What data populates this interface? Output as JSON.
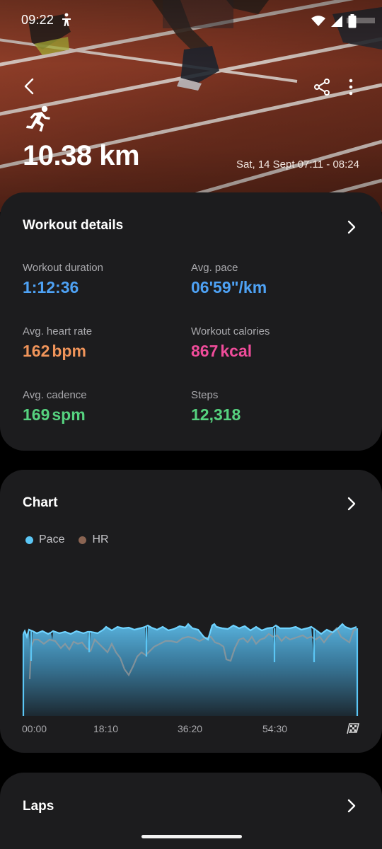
{
  "status_bar": {
    "time": "09:22",
    "left_icon": "accessibility-icon",
    "right_icons": [
      "wifi-icon",
      "signal-icon",
      "battery-icon"
    ]
  },
  "header": {
    "back_icon": "back-arrow-icon",
    "share_icon": "share-icon",
    "more_icon": "more-vertical-icon",
    "activity_icon": "running-icon",
    "distance": "10.38 km",
    "date_range": "Sat, 14 Sept 07:11 - 08:24",
    "background_image": "running track photo"
  },
  "workout_details": {
    "title": "Workout details",
    "stats": [
      {
        "label": "Workout duration",
        "value": "1:12:36",
        "unit": "",
        "color": "#4ea2f5"
      },
      {
        "label": "Avg. pace",
        "value": "06'59\"/km",
        "unit": "",
        "color": "#4ea2f5"
      },
      {
        "label": "Avg. heart rate",
        "value": "162",
        "unit": "bpm",
        "color": "#f0945a"
      },
      {
        "label": "Workout calories",
        "value": "867",
        "unit": "kcal",
        "color": "#ef4c9a"
      },
      {
        "label": "Avg. cadence",
        "value": "169",
        "unit": "spm",
        "color": "#56d27f"
      },
      {
        "label": "Steps",
        "value": "12,318",
        "unit": "",
        "color": "#56d27f"
      }
    ]
  },
  "chart": {
    "title": "Chart",
    "legend": [
      {
        "name": "Pace",
        "color": "#5bc6f5"
      },
      {
        "name": "HR",
        "color": "#8a6452"
      }
    ],
    "x_ticks": [
      "00:00",
      "18:10",
      "36:20",
      "54:30"
    ],
    "end_icon": "finish-flag-icon"
  },
  "laps": {
    "title": "Laps"
  }
}
